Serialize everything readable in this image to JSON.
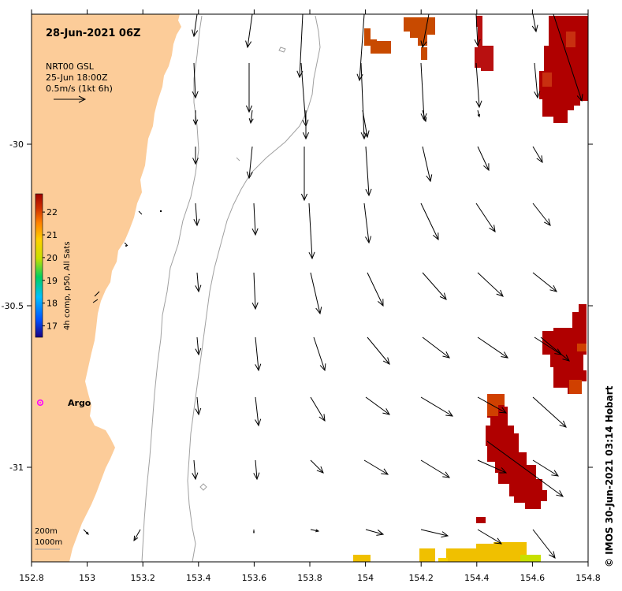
{
  "title": "28-Jun-2021 06Z",
  "reference_arrow": {
    "source": "NRT00 GSL",
    "date": "25-Jun 18:00Z",
    "scale": "0.5m/s (1kt 6h)"
  },
  "colorbar": {
    "label": "4h comp, p50, All Sats",
    "ticks": [
      "17",
      "18",
      "19",
      "20",
      "21",
      "22"
    ],
    "range": [
      16.5,
      22.8
    ],
    "colors": [
      "#1a0080",
      "#0050ff",
      "#00c0ff",
      "#00d060",
      "#c8e000",
      "#ffd000",
      "#ff8000",
      "#d03000",
      "#a00000"
    ]
  },
  "x_ticks": [
    "152.8",
    "153",
    "153.2",
    "153.4",
    "153.6",
    "153.8",
    "154",
    "154.2",
    "154.4",
    "154.6",
    "154.8"
  ],
  "y_ticks": [
    "-30",
    "-30.5",
    "-31"
  ],
  "argo_label": "Argo",
  "bathymetry": {
    "shallow": "200m",
    "deep": "1000m"
  },
  "credit": "© IMOS 30-Jun-2021 03:14 Hobart",
  "colors": {
    "land": "#fccc99",
    "sst_warm": "#b00000",
    "sst_mid": "#c84a00",
    "sst_yellow": "#f0c000",
    "argo": "#ff00ff"
  }
}
